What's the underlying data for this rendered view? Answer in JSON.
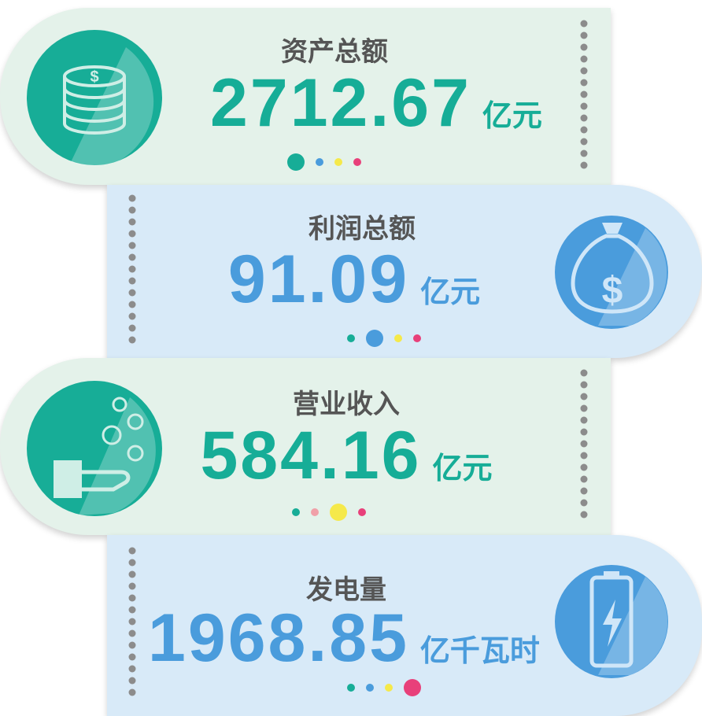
{
  "cards": [
    {
      "label": "资产总额",
      "value": "2712.67",
      "unit": "亿元"
    },
    {
      "label": "利润总额",
      "value": "91.09",
      "unit": "亿元"
    },
    {
      "label": "营业收入",
      "value": "584.16",
      "unit": "亿元"
    },
    {
      "label": "发电量",
      "value": "1968.85",
      "unit": "亿千瓦时"
    }
  ]
}
